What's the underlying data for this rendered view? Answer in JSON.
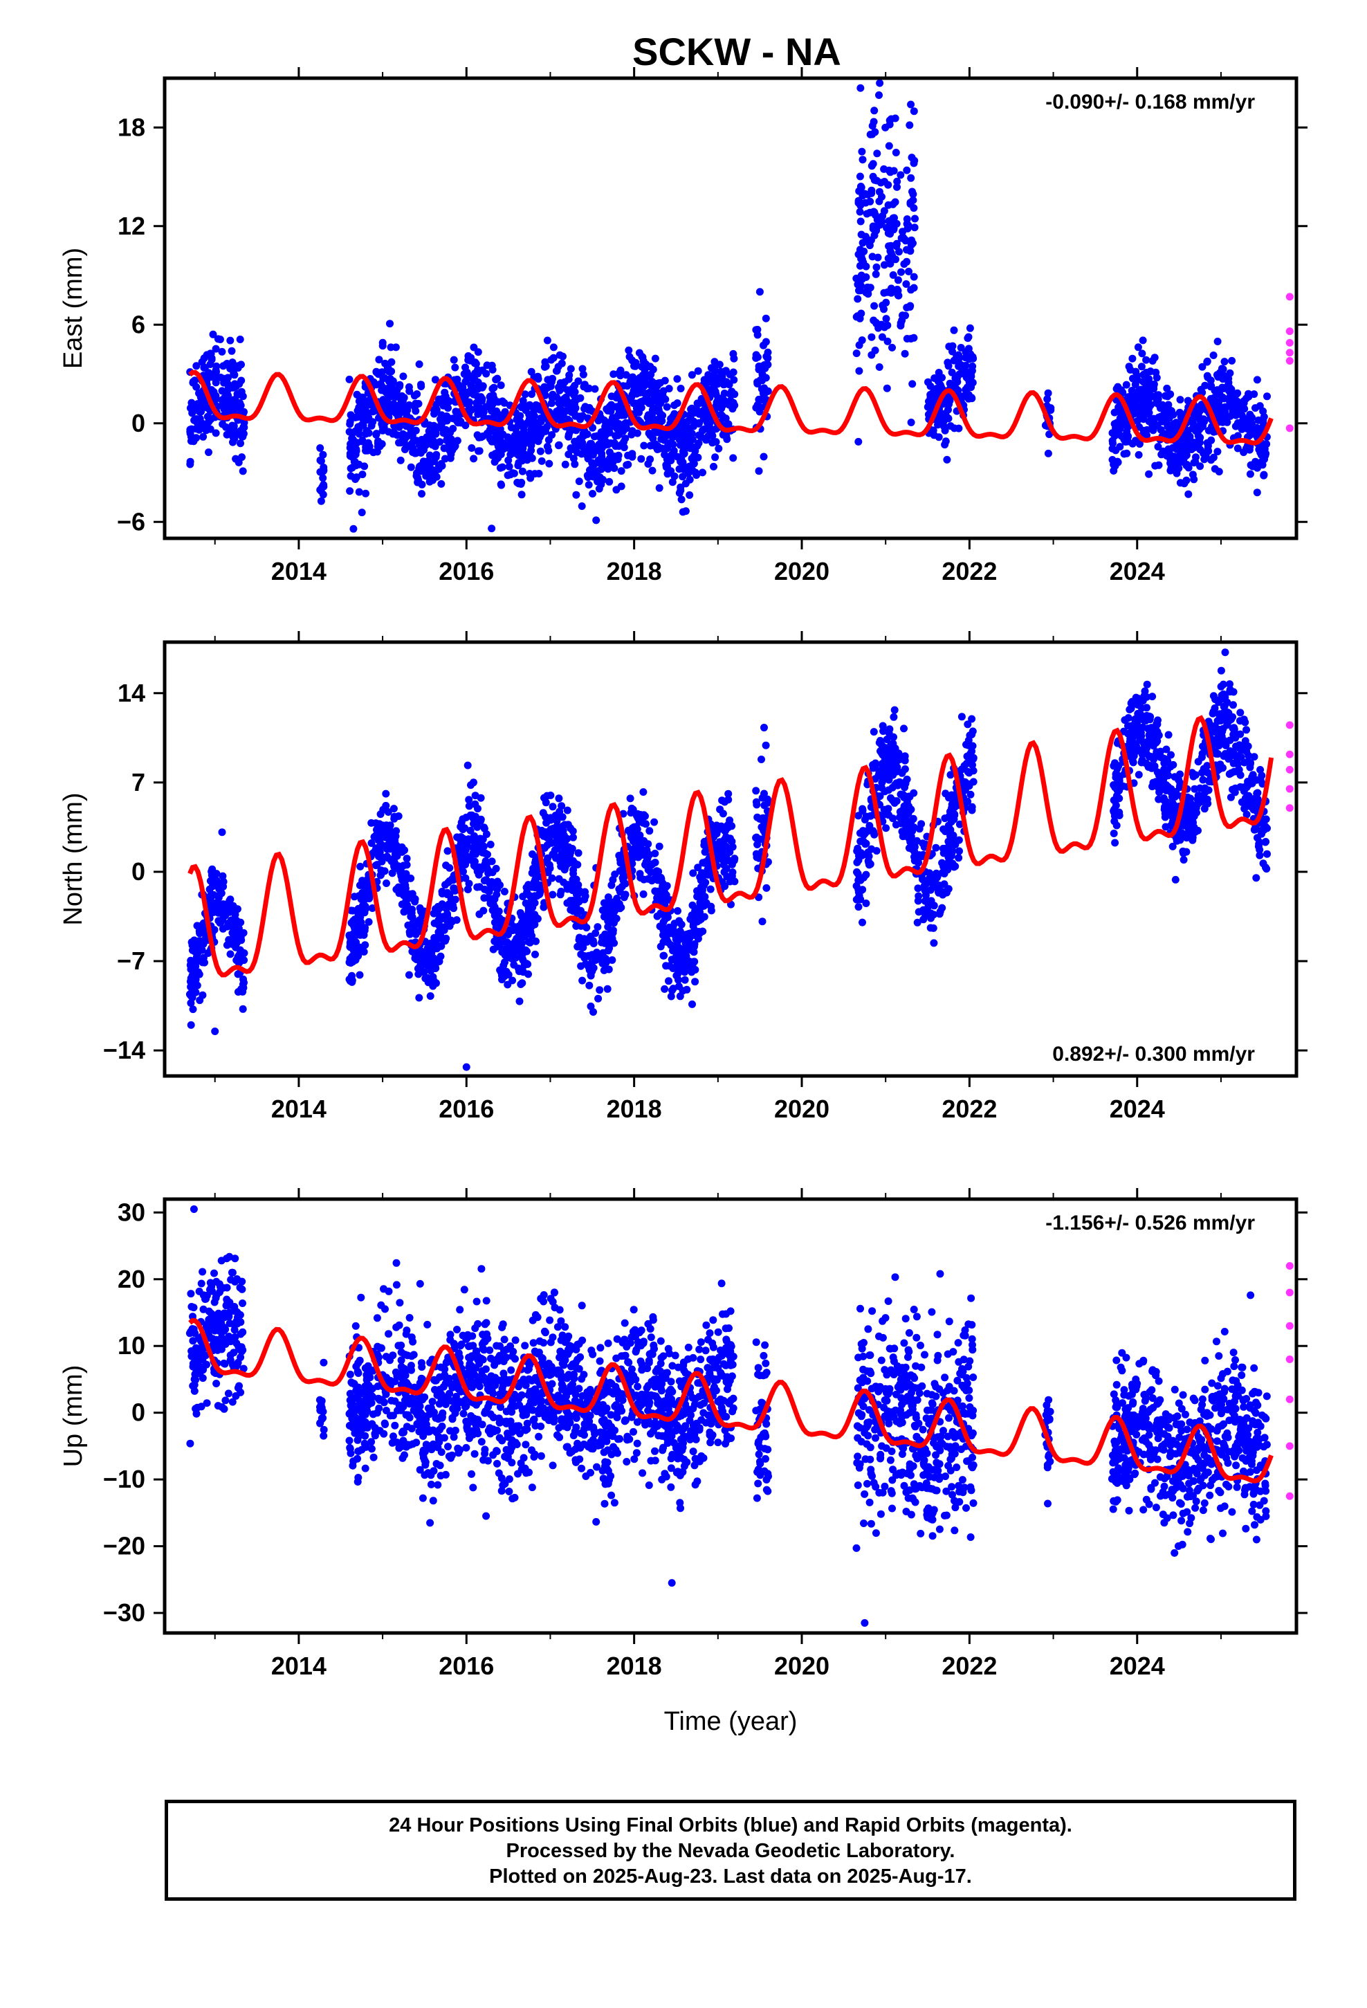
{
  "title": "SCKW - NA",
  "footer": {
    "line1": "24 Hour Positions Using Final Orbits (blue) and Rapid Orbits (magenta).",
    "line2": "Processed by the Nevada Geodetic Laboratory.",
    "line3": "Plotted on 2025-Aug-23. Last data on 2025-Aug-17."
  },
  "colors": {
    "final_orbits": "#0000ff",
    "rapid_orbits": "#ff33ff",
    "model_fit": "#ff0000",
    "axes": "#000000"
  },
  "chart_data": [
    {
      "type": "scatter",
      "ylabel": "East (mm)",
      "xlabel": "",
      "xlim": [
        2012.4,
        2025.9
      ],
      "ylim": [
        -7,
        21
      ],
      "xticks": [
        "2014",
        "2016",
        "2018",
        "2020",
        "2022",
        "2024"
      ],
      "yticks": [
        "-6",
        "0",
        "6",
        "12",
        "18"
      ],
      "rate": "-0.090+/- 0.168 mm/yr",
      "rate_position": "top-right",
      "final_segments": [
        {
          "x": [
            2012.7,
            2013.35
          ],
          "base": 0.8,
          "amp": 1.5,
          "noise": 1.5
        },
        {
          "x": [
            2014.25,
            2014.3
          ],
          "base": -3.0,
          "amp": 0.0,
          "noise": 1.0
        },
        {
          "x": [
            2014.6,
            2019.2
          ],
          "base": 0.0,
          "amp": 1.5,
          "noise": 1.5
        },
        {
          "x": [
            2019.45,
            2019.6
          ],
          "base": 2.5,
          "amp": 0.5,
          "noise": 2.0
        },
        {
          "x": [
            2020.65,
            2021.35
          ],
          "base": 10.5,
          "amp": 1.0,
          "noise": 4.5
        },
        {
          "x": [
            2021.5,
            2022.05
          ],
          "base": 1.8,
          "amp": 1.0,
          "noise": 1.2
        },
        {
          "x": [
            2022.9,
            2022.97
          ],
          "base": 0.0,
          "amp": 0.0,
          "noise": 1.0
        },
        {
          "x": [
            2023.7,
            2025.55
          ],
          "base": 0.2,
          "amp": 1.3,
          "noise": 1.3
        }
      ],
      "rapid_values": [
        7.7,
        5.6,
        4.9,
        4.3,
        3.8,
        -0.3
      ],
      "model": {
        "x": [
          2012.7,
          2025.6
        ],
        "base": [
          1.3,
          -0.3
        ],
        "amp": 1.3
      },
      "outliers": [
        [
          2019.5,
          8.0
        ],
        [
          2020.7,
          20.4
        ],
        [
          2021.3,
          19.4
        ],
        [
          2016.3,
          -6.4
        ]
      ]
    },
    {
      "type": "scatter",
      "ylabel": "North (mm)",
      "xlabel": "",
      "xlim": [
        2012.4,
        2025.9
      ],
      "ylim": [
        -16,
        18
      ],
      "xticks": [
        "2014",
        "2016",
        "2018",
        "2020",
        "2022",
        "2024"
      ],
      "yticks": [
        "-14",
        "-7",
        "0",
        "7",
        "14"
      ],
      "rate": "0.892+/- 0.300 mm/yr",
      "rate_position": "bottom-right",
      "final_segments": [
        {
          "x": [
            2012.7,
            2013.35
          ],
          "base": -6.5,
          "amp": 4.0,
          "noise": 1.6
        },
        {
          "x": [
            2014.6,
            2019.2
          ],
          "base": -2.0,
          "amp": 4.5,
          "noise": 1.8
        },
        {
          "x": [
            2019.45,
            2019.6
          ],
          "base": 4.0,
          "amp": 1.0,
          "noise": 2.5
        },
        {
          "x": [
            2020.65,
            2022.05
          ],
          "base": 3.5,
          "amp": 5.0,
          "noise": 2.0
        },
        {
          "x": [
            2023.7,
            2025.55
          ],
          "base": 7.5,
          "amp": 4.0,
          "noise": 1.8
        }
      ],
      "rapid_values": [
        11.5,
        9.2,
        8.0,
        6.5,
        5.0
      ],
      "model": {
        "x": [
          2012.7,
          2025.6
        ],
        "base": [
          -5.5,
          7.0
        ],
        "amp": 4.2
      },
      "outliers": [
        [
          2019.55,
          11.3
        ],
        [
          2025.05,
          17.2
        ],
        [
          2016.0,
          -15.3
        ],
        [
          2013.0,
          -12.5
        ]
      ]
    },
    {
      "type": "scatter",
      "ylabel": "Up (mm)",
      "xlabel": "Time (year)",
      "xlim": [
        2012.4,
        2025.9
      ],
      "ylim": [
        -33,
        32
      ],
      "xticks": [
        "2014",
        "2016",
        "2018",
        "2020",
        "2022",
        "2024"
      ],
      "yticks": [
        "-30",
        "-20",
        "-10",
        "0",
        "10",
        "20",
        "30"
      ],
      "rate": "-1.156+/- 0.526 mm/yr",
      "rate_position": "top-right",
      "final_segments": [
        {
          "x": [
            2012.7,
            2013.35
          ],
          "base": 10.0,
          "amp": 3.0,
          "noise": 5.0
        },
        {
          "x": [
            2014.25,
            2014.3
          ],
          "base": 0.0,
          "amp": 0.0,
          "noise": 3.0
        },
        {
          "x": [
            2014.6,
            2019.2
          ],
          "base": 2.0,
          "amp": 3.0,
          "noise": 5.5
        },
        {
          "x": [
            2019.45,
            2019.6
          ],
          "base": -2.0,
          "amp": 1.0,
          "noise": 5.0
        },
        {
          "x": [
            2020.65,
            2022.05
          ],
          "base": -2.0,
          "amp": 3.0,
          "noise": 7.0
        },
        {
          "x": [
            2022.9,
            2022.97
          ],
          "base": -4.0,
          "amp": 0.0,
          "noise": 4.0
        },
        {
          "x": [
            2023.7,
            2025.55
          ],
          "base": -5.0,
          "amp": 3.0,
          "noise": 5.5
        }
      ],
      "rapid_values": [
        22.0,
        18.0,
        13.0,
        8.0,
        2.0,
        -5.0,
        -12.5
      ],
      "model": {
        "x": [
          2012.7,
          2025.6
        ],
        "base": [
          9.0,
          -8.0
        ],
        "amp": 3.5
      },
      "outliers": [
        [
          2012.75,
          30.5
        ],
        [
          2020.75,
          -31.5
        ],
        [
          2018.45,
          -25.5
        ],
        [
          2021.65,
          20.8
        ]
      ]
    }
  ]
}
